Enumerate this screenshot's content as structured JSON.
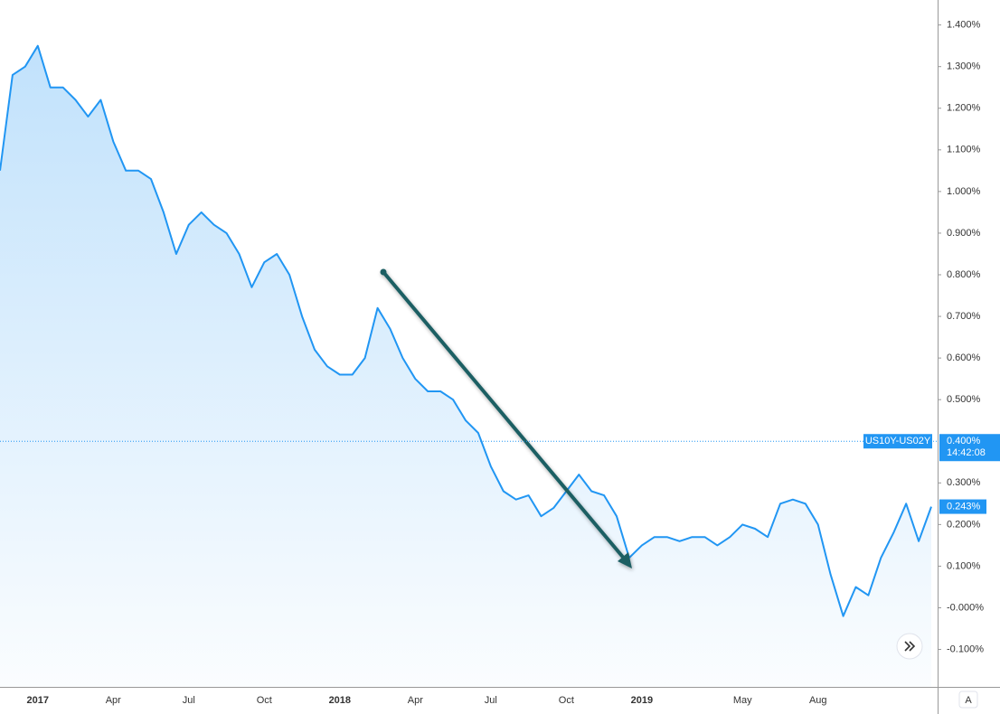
{
  "chart_data": {
    "type": "area",
    "symbol": "US10Y-US02Y",
    "time": "14:42:08",
    "auto_scale_label": "A",
    "grid": false,
    "categories": [
      null,
      null,
      null,
      "2017",
      null,
      null,
      null,
      null,
      null,
      "Apr",
      null,
      null,
      null,
      null,
      null,
      "Jul",
      null,
      null,
      null,
      null,
      null,
      "Oct",
      null,
      null,
      null,
      null,
      null,
      "2018",
      null,
      null,
      null,
      null,
      null,
      "Apr",
      null,
      null,
      null,
      null,
      null,
      "Jul",
      null,
      null,
      null,
      null,
      null,
      "Oct",
      null,
      null,
      null,
      null,
      null,
      "2019",
      null,
      null,
      null,
      null,
      null,
      null,
      null,
      "May",
      null,
      null,
      null,
      null,
      null,
      "Aug",
      null,
      null,
      null,
      null,
      null,
      null,
      null,
      null,
      null
    ],
    "series": [
      {
        "name": "US10Y-US02Y",
        "color": "#2196f3",
        "values": [
          1.05,
          1.28,
          1.3,
          1.35,
          1.25,
          1.25,
          1.22,
          1.18,
          1.22,
          1.12,
          1.05,
          1.05,
          1.03,
          0.95,
          0.85,
          0.92,
          0.95,
          0.92,
          0.9,
          0.85,
          0.77,
          0.83,
          0.85,
          0.8,
          0.7,
          0.62,
          0.58,
          0.56,
          0.56,
          0.6,
          0.72,
          0.67,
          0.6,
          0.55,
          0.52,
          0.52,
          0.5,
          0.45,
          0.42,
          0.34,
          0.28,
          0.26,
          0.27,
          0.22,
          0.24,
          0.28,
          0.32,
          0.28,
          0.27,
          0.22,
          0.12,
          0.15,
          0.17,
          0.17,
          0.16,
          0.17,
          0.17,
          0.15,
          0.17,
          0.2,
          0.19,
          0.17,
          0.25,
          0.26,
          0.25,
          0.2,
          0.08,
          -0.02,
          0.05,
          0.03,
          0.12,
          0.18,
          0.25,
          0.16,
          0.243
        ]
      }
    ],
    "current_value": {
      "value": 0.243,
      "label": "0.243%"
    },
    "reference_line": {
      "value": 0.4,
      "label": "0.400%"
    },
    "ylim": [
      -0.19,
      1.46
    ],
    "yticks": [
      {
        "value": 1.4,
        "label": "1.400%"
      },
      {
        "value": 1.3,
        "label": "1.300%"
      },
      {
        "value": 1.2,
        "label": "1.200%"
      },
      {
        "value": 1.1,
        "label": "1.100%"
      },
      {
        "value": 1.0,
        "label": "1.000%"
      },
      {
        "value": 0.9,
        "label": "0.900%"
      },
      {
        "value": 0.8,
        "label": "0.800%"
      },
      {
        "value": 0.7,
        "label": "0.700%"
      },
      {
        "value": 0.6,
        "label": "0.600%"
      },
      {
        "value": 0.5,
        "label": "0.500%"
      },
      {
        "value": 0.3,
        "label": "0.300%"
      },
      {
        "value": 0.2,
        "label": "0.200%"
      },
      {
        "value": 0.1,
        "label": "0.100%"
      },
      {
        "value": 0,
        "label": "-0.000%"
      },
      {
        "value": -0.1,
        "label": "-0.100%"
      }
    ]
  }
}
